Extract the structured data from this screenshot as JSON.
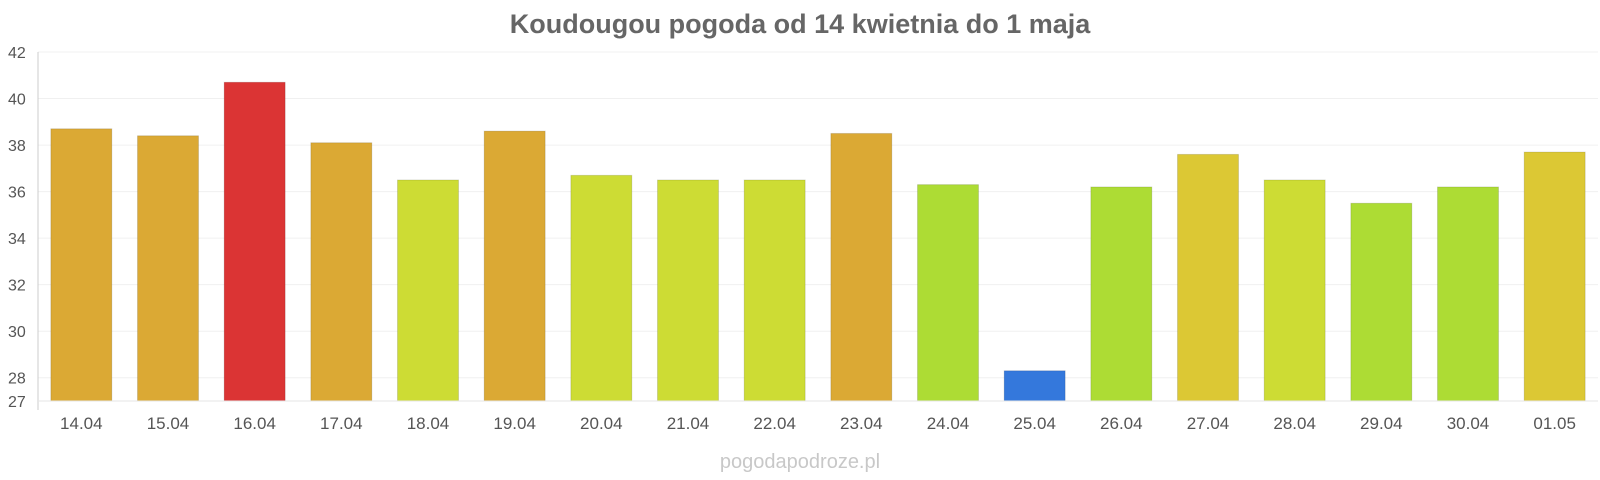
{
  "chart_data": {
    "type": "bar",
    "title": "Koudougou pogoda od 14 kwietnia do 1 maja",
    "xlabel": "",
    "ylabel": "",
    "categories": [
      "14.04",
      "15.04",
      "16.04",
      "17.04",
      "18.04",
      "19.04",
      "20.04",
      "21.04",
      "22.04",
      "23.04",
      "24.04",
      "25.04",
      "26.04",
      "27.04",
      "28.04",
      "29.04",
      "30.04",
      "01.05"
    ],
    "values": [
      38.7,
      38.4,
      40.7,
      38.1,
      36.5,
      38.6,
      36.7,
      36.5,
      36.5,
      38.5,
      36.3,
      28.3,
      36.2,
      37.6,
      36.5,
      35.5,
      36.2,
      37.7
    ],
    "bar_colors": [
      "#dba934",
      "#dba934",
      "#db3434",
      "#dba934",
      "#cddc34",
      "#dba934",
      "#cddc34",
      "#cddc34",
      "#cddc34",
      "#dba934",
      "#addc34",
      "#3478dc",
      "#addc34",
      "#dcc834",
      "#cddc34",
      "#addc34",
      "#addc34",
      "#dcc834"
    ],
    "ylim": [
      27,
      42
    ],
    "yticks": [
      "42",
      "40",
      "38",
      "36",
      "34",
      "32",
      "30",
      "28",
      "27"
    ],
    "grid": true,
    "watermark": "pogodapodroze.pl"
  }
}
